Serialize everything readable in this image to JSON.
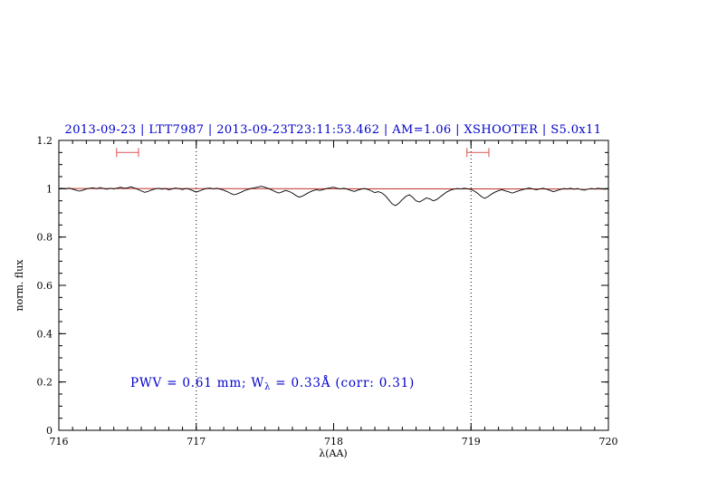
{
  "chart_data": {
    "type": "line",
    "title": "2013-09-23 | LTT7987 | 2013-09-23T23:11:53.462 | AM=1.06 | XSHOOTER | S5.0x11",
    "xlabel": "λ(AA)",
    "ylabel": "norm. flux",
    "xlim": [
      716,
      720
    ],
    "ylim": [
      0,
      1.2
    ],
    "x_ticks": [
      716,
      717,
      718,
      719,
      720
    ],
    "x_tick_labels": [
      "716",
      "717",
      "718",
      "719",
      "720"
    ],
    "x_minor_step": 0.1,
    "y_ticks": [
      0,
      0.2,
      0.4,
      0.6,
      0.8,
      1,
      1.2
    ],
    "y_tick_labels": [
      "0",
      "0.2",
      "0.4",
      "0.6",
      "0.8",
      "1",
      "1.2"
    ],
    "y_minor_step": 0.05,
    "grid": false,
    "legend": "none",
    "vlines": {
      "x": [
        717,
        719
      ],
      "style": "dotted",
      "color": "#000000"
    },
    "series": [
      {
        "name": "observed-spectrum",
        "color": "#000000",
        "x_start": 716,
        "x_step": 0.025,
        "values": [
          1.0,
          1.002,
          0.999,
          1.003,
          0.998,
          0.994,
          0.99,
          0.994,
          0.999,
          1.002,
          1.004,
          1.0,
          1.005,
          1.001,
          0.998,
          1.002,
          0.999,
          1.003,
          1.006,
          1.002,
          1.004,
          1.008,
          1.003,
          0.997,
          0.991,
          0.985,
          0.989,
          0.995,
          0.999,
          1.002,
          0.998,
          1.001,
          0.996,
          0.999,
          1.003,
          1.0,
          0.997,
          1.001,
          0.998,
          0.992,
          0.986,
          0.991,
          0.997,
          1.001,
          1.003,
          0.999,
          1.002,
          0.998,
          0.994,
          0.988,
          0.981,
          0.975,
          0.979,
          0.985,
          0.992,
          0.997,
          1.001,
          1.004,
          1.007,
          1.01,
          1.006,
          1.001,
          0.995,
          0.988,
          0.982,
          0.987,
          0.993,
          0.989,
          0.982,
          0.972,
          0.965,
          0.97,
          0.978,
          0.986,
          0.992,
          0.996,
          0.993,
          0.997,
          1.001,
          1.004,
          1.006,
          1.002,
          0.999,
          1.002,
          0.998,
          0.993,
          0.989,
          0.994,
          0.998,
          1.001,
          0.997,
          0.991,
          0.984,
          0.988,
          0.983,
          0.972,
          0.955,
          0.938,
          0.93,
          0.94,
          0.955,
          0.968,
          0.975,
          0.965,
          0.95,
          0.945,
          0.953,
          0.962,
          0.958,
          0.95,
          0.955,
          0.966,
          0.977,
          0.987,
          0.994,
          0.998,
          1.001,
          0.999,
          1.002,
          1.0,
          0.997,
          0.99,
          0.98,
          0.968,
          0.96,
          0.968,
          0.978,
          0.986,
          0.992,
          0.996,
          0.991,
          0.987,
          0.982,
          0.987,
          0.992,
          0.996,
          1.0,
          1.003,
          0.999,
          0.996,
          0.999,
          1.002,
          0.998,
          0.993,
          0.988,
          0.992,
          0.997,
          1.001,
          0.999,
          1.002,
          0.998,
          1.001,
          0.997,
          0.994,
          0.998,
          1.001,
          0.999,
          1.002,
          1.0,
          0.998,
          1.001
        ]
      },
      {
        "name": "continuum-fit",
        "color": "#c03028",
        "x": [
          716,
          720
        ],
        "values": [
          1.001,
          0.999
        ]
      }
    ],
    "range_markers": {
      "color": "#e06a6a",
      "y": 1.15,
      "intervals": [
        [
          716.42,
          716.58
        ],
        [
          718.97,
          719.13
        ]
      ]
    },
    "annotation": {
      "text": "PWV = 0.61 mm; W_λ = 0.33Å (corr: 0.31)",
      "prefix": "PWV = 0.61 mm; W",
      "sub": "λ",
      "suffix": " = 0.33Å (corr: 0.31)",
      "x": 716.52,
      "y": 0.2,
      "color": "#0000cc"
    },
    "colors": {
      "title": "#0000cc",
      "axes": "#000000",
      "background": "#ffffff"
    }
  }
}
